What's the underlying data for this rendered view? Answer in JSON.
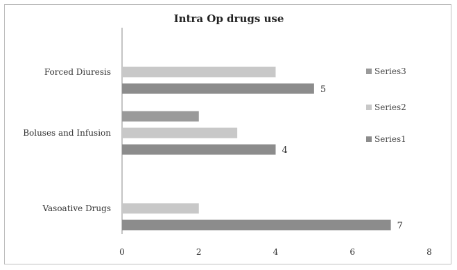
{
  "chart_data": {
    "type": "bar",
    "orientation": "horizontal",
    "title": "Intra Op drugs use",
    "categories": [
      "Vasoative Drugs",
      "Boluses and Infusion",
      "Forced Diuresis"
    ],
    "series": [
      {
        "name": "Series1",
        "values": [
          7,
          4,
          5
        ],
        "color": "#8c8c8c"
      },
      {
        "name": "Series2",
        "values": [
          2,
          3,
          4
        ],
        "color": "#c8c8c8"
      },
      {
        "name": "Series3",
        "values": [
          0,
          2,
          0
        ],
        "color": "#9a9a9a"
      }
    ],
    "data_labels": {
      "Series1": [
        "7",
        "4",
        "5"
      ]
    },
    "xlim": [
      0,
      8
    ],
    "xticks": [
      "0",
      "2",
      "4",
      "6",
      "8"
    ],
    "grid": false,
    "legend_position": "right"
  }
}
